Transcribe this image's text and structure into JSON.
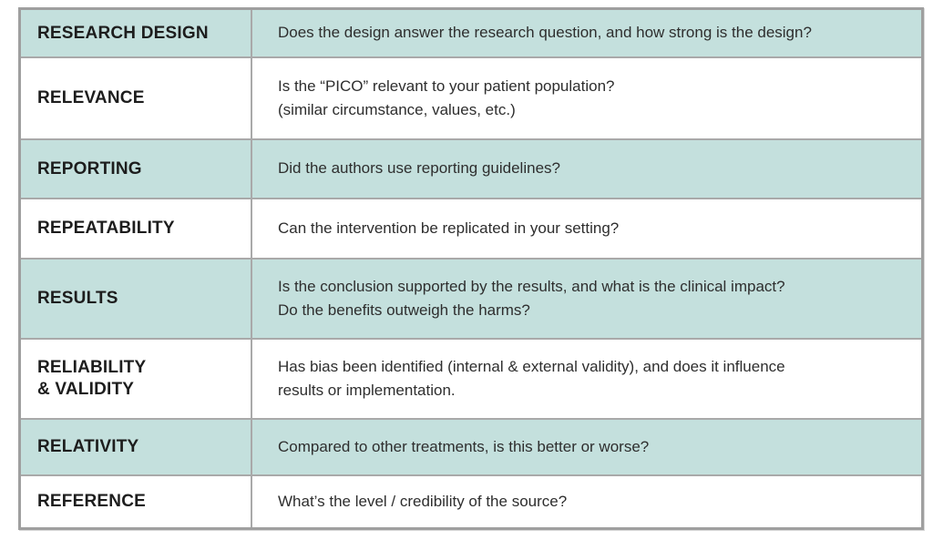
{
  "colors": {
    "shaded_row_bg": "#c4e0dd",
    "outer_border": "#9f9f9f",
    "inner_border": "#a9a9a9",
    "label_text": "#1d1d1d",
    "question_text": "#2e2e2e"
  },
  "table": {
    "rows": [
      {
        "label": "RESEARCH DESIGN",
        "question": "Does the design answer the research question, and how strong is the design?",
        "shaded": true
      },
      {
        "label": "RELEVANCE",
        "question": "Is the “PICO” relevant to your patient population?\n(similar circumstance, values, etc.)",
        "shaded": false
      },
      {
        "label": "REPORTING",
        "question": "Did the authors use reporting guidelines?",
        "shaded": true
      },
      {
        "label": "REPEATABILITY",
        "question": "Can the intervention be replicated in your setting?",
        "shaded": false
      },
      {
        "label": "RESULTS",
        "question": "Is the conclusion supported by the results, and what is the clinical impact?\nDo the benefits outweigh the harms?",
        "shaded": true
      },
      {
        "label": "RELIABILITY\n& VALIDITY",
        "question": "Has bias been identified (internal & external validity), and does it influence\nresults or implementation.",
        "shaded": false
      },
      {
        "label": "RELATIVITY",
        "question": "Compared to other treatments, is this better or worse?",
        "shaded": true
      },
      {
        "label": "REFERENCE",
        "question": "What’s the level / credibility of the source?",
        "shaded": false
      }
    ]
  }
}
